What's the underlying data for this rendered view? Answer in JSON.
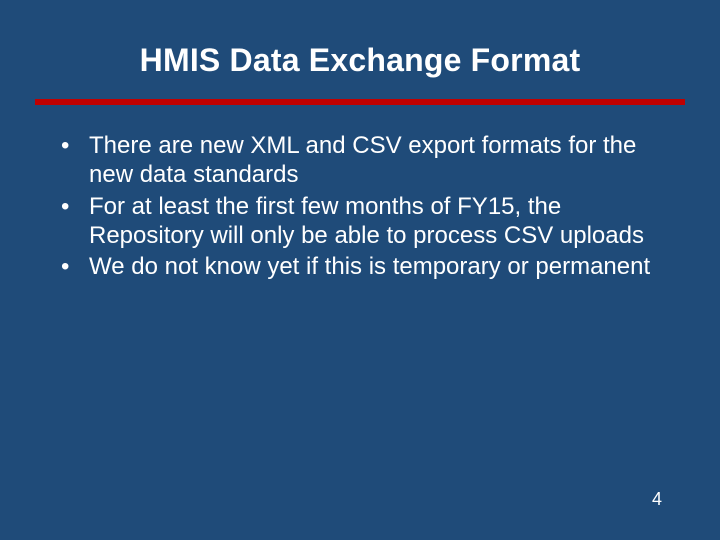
{
  "slide": {
    "background_color": "#1f4b79",
    "text_color": "#ffffff",
    "underline_color": "#c00000",
    "title": "HMIS Data Exchange Format",
    "title_fontsize": 32,
    "bullet_fontsize": 24,
    "bullets": [
      "There are new XML and CSV export formats for the new data standards",
      "For at least the first few months of FY15, the Repository will only be able to process CSV uploads",
      "We do not know yet if this is temporary or permanent"
    ],
    "page_number": "4"
  }
}
